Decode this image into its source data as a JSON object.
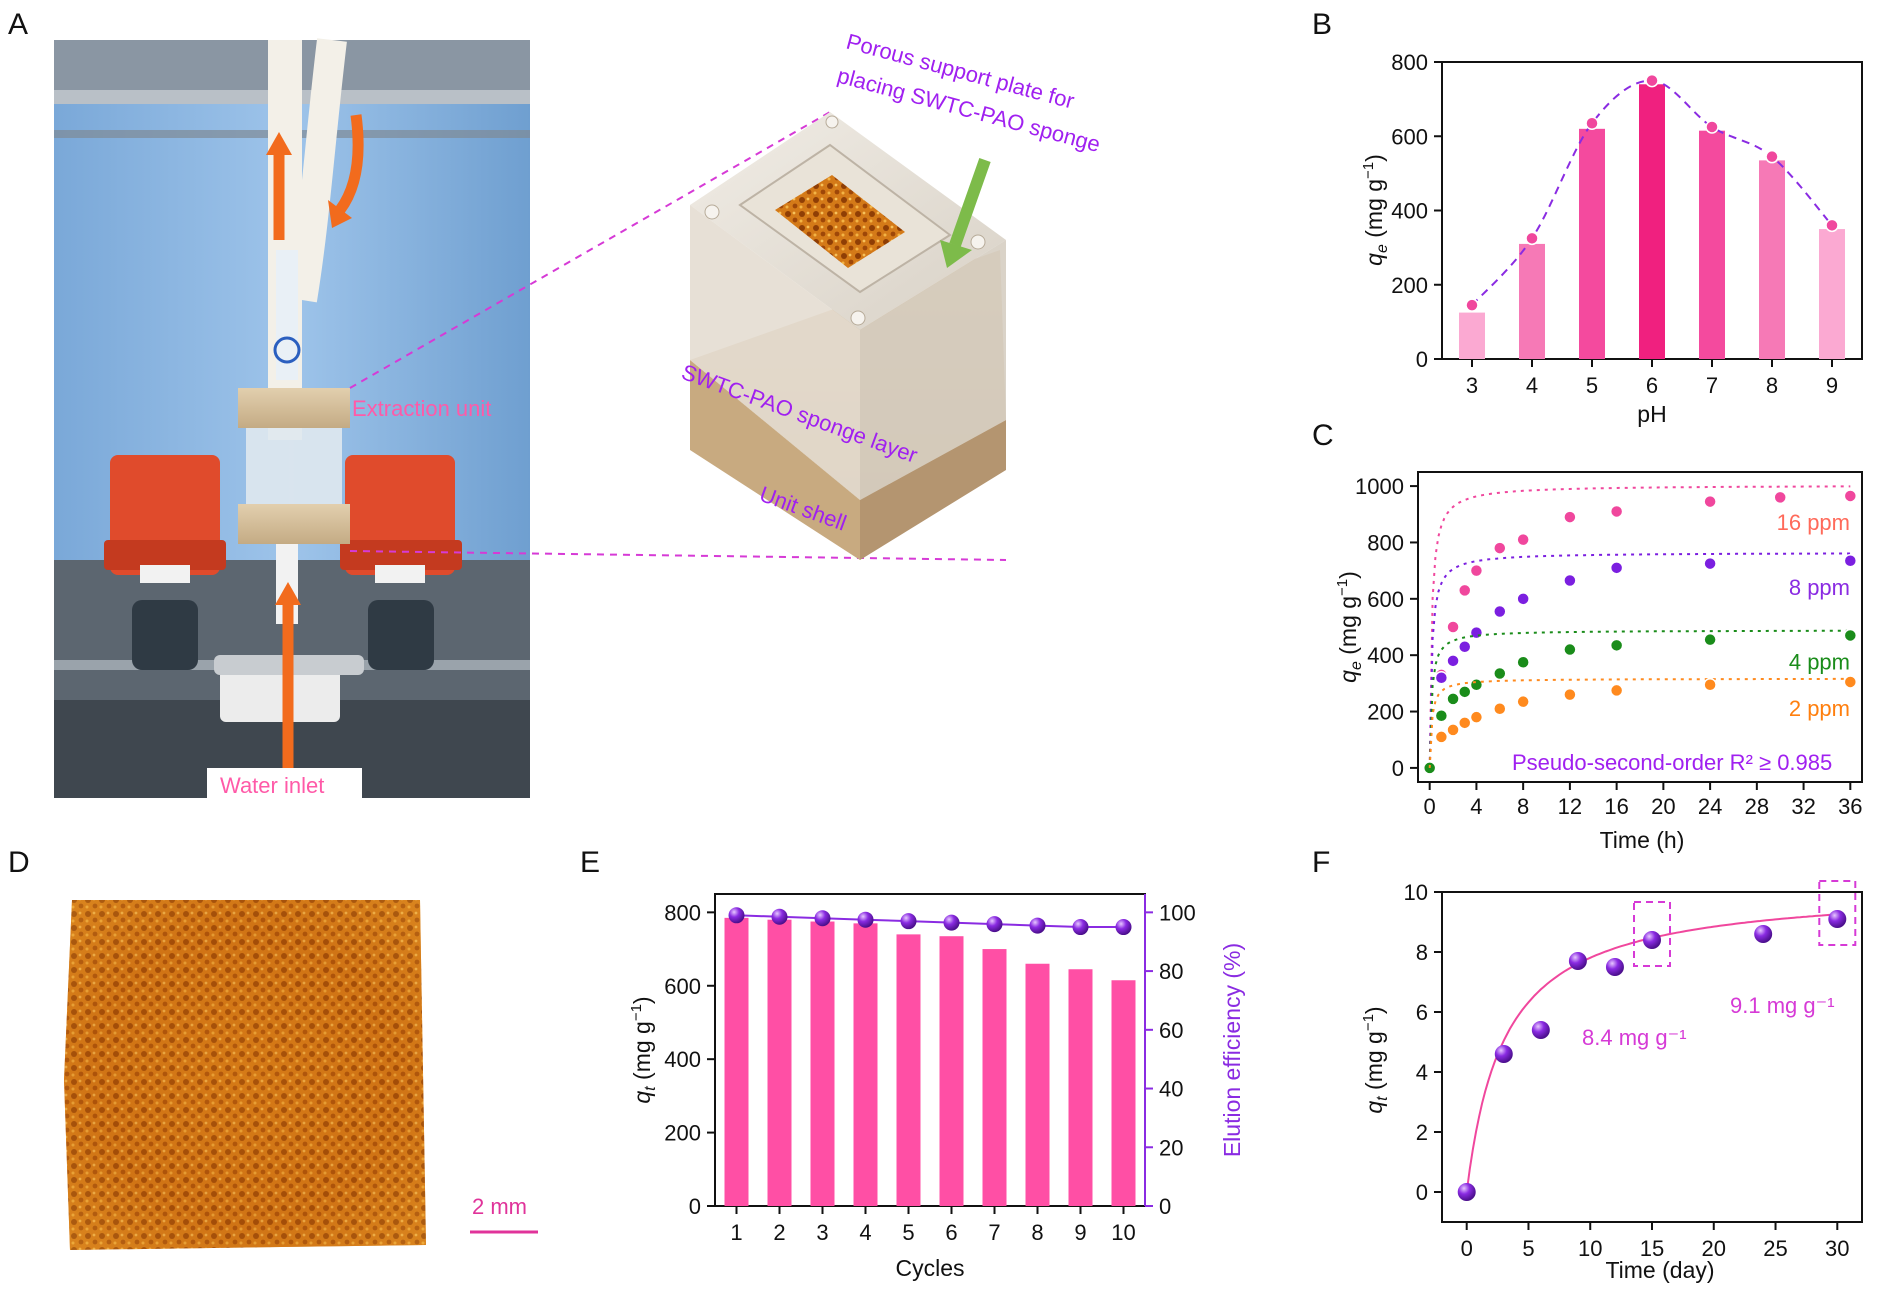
{
  "figure": {
    "panel_labels": [
      "A",
      "B",
      "C",
      "D",
      "E",
      "F"
    ],
    "colors": {
      "pink_bar": "#ff4fa5",
      "purple": "#8a2be2",
      "violet_text": "#a020f0",
      "green": "#1a8c1a",
      "orange": "#ff7f0e",
      "magenta_text": "#e0339a",
      "label_pink": "#ff5aa8"
    },
    "panel_a": {
      "extraction_unit": "Extraction unit",
      "water_inlet": "Water inlet",
      "porous_plate": "Porous support plate for placing SWTC-PAO sponge",
      "porous_plate_line1": "Porous support plate for",
      "porous_plate_line2": "placing SWTC-PAO sponge",
      "sponge_layer": "SWTC-PAO sponge layer",
      "unit_shell": "Unit shell"
    },
    "panel_d": {
      "scale_bar": "2 mm"
    }
  },
  "chart_data": [
    {
      "panel": "B",
      "type": "bar",
      "xlabel": "pH",
      "ylabel": "q_e (mg g⁻¹)",
      "categories": [
        "3",
        "4",
        "5",
        "6",
        "7",
        "8",
        "9"
      ],
      "values": [
        125,
        310,
        620,
        740,
        615,
        535,
        350
      ],
      "points": [
        145,
        325,
        635,
        750,
        625,
        545,
        360
      ],
      "bar_colors": [
        "#fba9d2",
        "#f679b6",
        "#f44a9e",
        "#f0207f",
        "#f44a9e",
        "#f679b6",
        "#fba9d2"
      ],
      "ylim": [
        0,
        800
      ],
      "yticks": [
        "0",
        "200",
        "400",
        "600",
        "800"
      ],
      "fit_style": "dashed"
    },
    {
      "panel": "C",
      "type": "scatter",
      "xlabel": "Time (h)",
      "ylabel": "q_e (mg g⁻¹)",
      "xlim": [
        -1,
        37
      ],
      "ylim": [
        -50,
        1050
      ],
      "xticks": [
        "0",
        "4",
        "8",
        "12",
        "16",
        "20",
        "24",
        "28",
        "32",
        "36"
      ],
      "yticks": [
        "0",
        "200",
        "400",
        "600",
        "800",
        "1000"
      ],
      "annotation": "Pseudo-second-order R² ≥ 0.985",
      "series": [
        {
          "name": "16 ppm",
          "color": "#f0479d",
          "label_color": "#ff6a5a",
          "x": [
            0,
            1,
            2,
            3,
            4,
            6,
            8,
            12,
            16,
            24,
            30,
            36
          ],
          "y": [
            0,
            330,
            500,
            630,
            700,
            780,
            810,
            890,
            910,
            945,
            960,
            965
          ]
        },
        {
          "name": "8 ppm",
          "color": "#7b1fe0",
          "label_color": "#8a2be2",
          "x": [
            0,
            1,
            2,
            3,
            4,
            6,
            8,
            12,
            16,
            24,
            36
          ],
          "y": [
            0,
            320,
            380,
            430,
            480,
            555,
            600,
            665,
            710,
            725,
            735
          ]
        },
        {
          "name": "4 ppm",
          "color": "#1a8c1a",
          "label_color": "#1a8c1a",
          "x": [
            0,
            1,
            2,
            3,
            4,
            6,
            8,
            12,
            16,
            24,
            36
          ],
          "y": [
            0,
            185,
            245,
            270,
            295,
            335,
            375,
            420,
            435,
            455,
            470
          ]
        },
        {
          "name": "2 ppm",
          "color": "#ff8a1e",
          "label_color": "#ff7f0e",
          "x": [
            1,
            2,
            3,
            4,
            6,
            8,
            12,
            16,
            24,
            36
          ],
          "y": [
            110,
            135,
            160,
            180,
            210,
            235,
            260,
            275,
            295,
            305
          ]
        }
      ]
    },
    {
      "panel": "E",
      "type": "bar",
      "xlabel": "Cycles",
      "ylabel": "q_t (mg g⁻¹)",
      "y2label": "Elution efficiency (%)",
      "categories": [
        "1",
        "2",
        "3",
        "4",
        "5",
        "6",
        "7",
        "8",
        "9",
        "10"
      ],
      "values": [
        785,
        780,
        775,
        770,
        740,
        735,
        700,
        660,
        645,
        615
      ],
      "ylim": [
        0,
        850
      ],
      "yticks": [
        "0",
        "200",
        "400",
        "600",
        "800"
      ],
      "series2": {
        "name": "Elution efficiency",
        "values": [
          99,
          98.5,
          98,
          97.5,
          97,
          96.5,
          96,
          95.5,
          95,
          95
        ],
        "ylim": [
          0,
          106.25
        ]
      },
      "y2ticks": [
        "0",
        "20",
        "40",
        "60",
        "80",
        "100"
      ]
    },
    {
      "panel": "F",
      "type": "scatter",
      "xlabel": "Time (day)",
      "ylabel": "q_t (mg g⁻¹)",
      "xlim": [
        -2,
        32
      ],
      "ylim": [
        -1,
        10
      ],
      "xticks": [
        "0",
        "5",
        "10",
        "15",
        "20",
        "25",
        "30"
      ],
      "yticks": [
        "0",
        "2",
        "4",
        "6",
        "8",
        "10"
      ],
      "x": [
        0,
        3,
        6,
        9,
        12,
        15,
        24,
        30
      ],
      "y": [
        0,
        4.6,
        5.4,
        7.7,
        7.5,
        8.4,
        8.6,
        9.1
      ],
      "annotations": [
        "8.4 mg g⁻¹",
        "9.1 mg g⁻¹"
      ],
      "fit_style": "solid"
    }
  ]
}
